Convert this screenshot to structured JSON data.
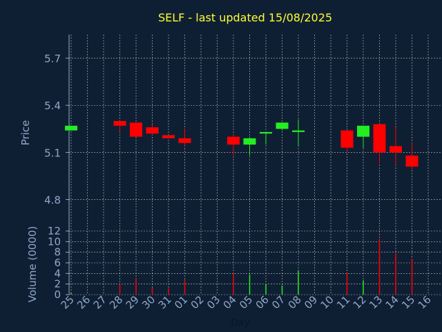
{
  "colors": {
    "background": "#0f1f33",
    "title": "#ffff33",
    "axis_text": "#8fa8c8",
    "xlabel": "#0a1424",
    "up": "#22ee22",
    "down": "#ff0000",
    "grid": "#ffffff"
  },
  "chart_data": [
    {
      "type": "candlestick",
      "title": "SELF - last updated 15/08/2025",
      "ylabel": "Price",
      "ylim": [
        4.6,
        5.85
      ],
      "yticks": [
        4.8,
        5.1,
        5.4,
        5.7
      ],
      "grid": true,
      "categories": [
        "25",
        "26",
        "27",
        "28",
        "29",
        "30",
        "31",
        "01",
        "02",
        "03",
        "04",
        "05",
        "06",
        "07",
        "08",
        "09",
        "10",
        "11",
        "12",
        "13",
        "14",
        "15",
        "16"
      ],
      "candles": [
        {
          "day": "25",
          "open": 5.24,
          "close": 5.27,
          "high": 5.27,
          "low": 5.24
        },
        {
          "day": "28",
          "open": 5.3,
          "close": 5.27,
          "high": 5.3,
          "low": 5.23
        },
        {
          "day": "29",
          "open": 5.29,
          "close": 5.2,
          "high": 5.29,
          "low": 5.2
        },
        {
          "day": "30",
          "open": 5.26,
          "close": 5.22,
          "high": 5.28,
          "low": 5.21
        },
        {
          "day": "31",
          "open": 5.21,
          "close": 5.19,
          "high": 5.21,
          "low": 5.19
        },
        {
          "day": "01",
          "open": 5.19,
          "close": 5.16,
          "high": 5.25,
          "low": 5.14
        },
        {
          "day": "04",
          "open": 5.2,
          "close": 5.15,
          "high": 5.22,
          "low": 5.08
        },
        {
          "day": "05",
          "open": 5.15,
          "close": 5.19,
          "high": 5.2,
          "low": 5.08
        },
        {
          "day": "06",
          "open": 5.22,
          "close": 5.23,
          "high": 5.23,
          "low": 5.15
        },
        {
          "day": "07",
          "open": 5.25,
          "close": 5.29,
          "high": 5.29,
          "low": 5.24
        },
        {
          "day": "08",
          "open": 5.23,
          "close": 5.24,
          "high": 5.31,
          "low": 5.14
        },
        {
          "day": "11",
          "open": 5.24,
          "close": 5.13,
          "high": 5.24,
          "low": 5.1
        },
        {
          "day": "12",
          "open": 5.2,
          "close": 5.27,
          "high": 5.27,
          "low": 5.13
        },
        {
          "day": "13",
          "open": 5.28,
          "close": 5.1,
          "high": 5.28,
          "low": 5.03
        },
        {
          "day": "14",
          "open": 5.14,
          "close": 5.1,
          "high": 5.26,
          "low": 5.02
        },
        {
          "day": "15",
          "open": 5.08,
          "close": 5.01,
          "high": 5.16,
          "low": 4.99
        }
      ]
    },
    {
      "type": "bar",
      "ylabel": "Volume (0000)",
      "xlabel": "Day",
      "ylim": [
        0,
        12
      ],
      "yticks": [
        0,
        2,
        4,
        6,
        8,
        10,
        12
      ],
      "grid": true,
      "categories": [
        "25",
        "26",
        "27",
        "28",
        "29",
        "30",
        "31",
        "01",
        "02",
        "03",
        "04",
        "05",
        "06",
        "07",
        "08",
        "09",
        "10",
        "11",
        "12",
        "13",
        "14",
        "15",
        "16"
      ],
      "bars": [
        {
          "day": "25",
          "value": 0.3,
          "direction": "up"
        },
        {
          "day": "28",
          "value": 2.0,
          "direction": "down"
        },
        {
          "day": "29",
          "value": 3.0,
          "direction": "down"
        },
        {
          "day": "30",
          "value": 1.3,
          "direction": "down"
        },
        {
          "day": "31",
          "value": 1.2,
          "direction": "down"
        },
        {
          "day": "01",
          "value": 2.8,
          "direction": "down"
        },
        {
          "day": "04",
          "value": 4.0,
          "direction": "down"
        },
        {
          "day": "05",
          "value": 3.8,
          "direction": "up"
        },
        {
          "day": "06",
          "value": 2.0,
          "direction": "up"
        },
        {
          "day": "07",
          "value": 1.7,
          "direction": "up"
        },
        {
          "day": "08",
          "value": 4.5,
          "direction": "up"
        },
        {
          "day": "11",
          "value": 4.1,
          "direction": "down"
        },
        {
          "day": "12",
          "value": 2.7,
          "direction": "up"
        },
        {
          "day": "13",
          "value": 10.5,
          "direction": "down"
        },
        {
          "day": "14",
          "value": 7.8,
          "direction": "down"
        },
        {
          "day": "15",
          "value": 6.8,
          "direction": "down"
        }
      ]
    }
  ]
}
